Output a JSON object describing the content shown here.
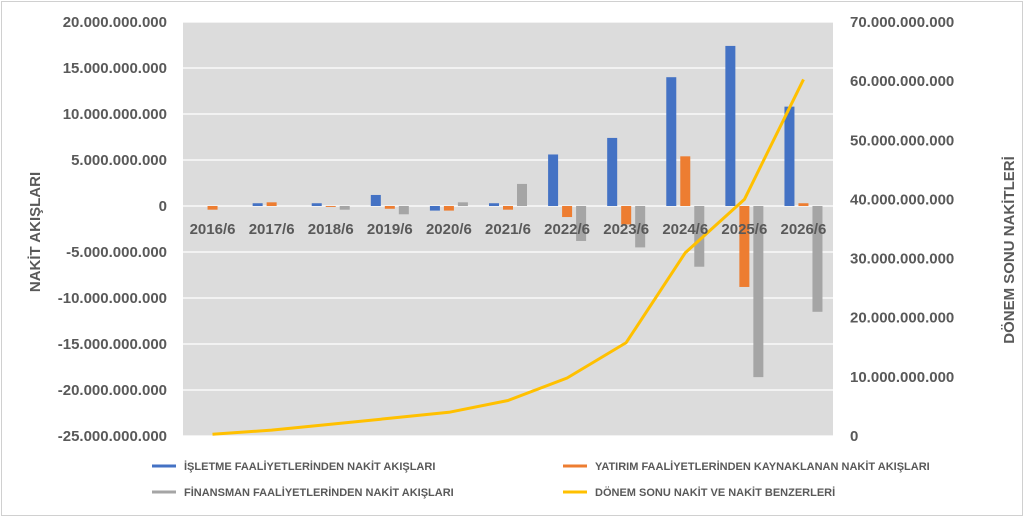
{
  "chart_data": {
    "type": "bar",
    "categories": [
      "2016/6",
      "2017/6",
      "2018/6",
      "2019/6",
      "2020/6",
      "2021/6",
      "2022/6",
      "2023/6",
      "2024/6",
      "2025/6",
      "2026/6"
    ],
    "series": [
      {
        "name": "İŞLETME FAALİYETLERİNDEN NAKİT AKIŞLARI",
        "type": "bar",
        "axis": "left",
        "color": "#4472C4",
        "values": [
          0,
          300000000,
          300000000,
          1200000000,
          -500000000,
          300000000,
          5600000000,
          7400000000,
          14000000000,
          17400000000,
          10800000000
        ]
      },
      {
        "name": "YATIRIM FAALİYETLERİNDEN KAYNAKLANAN NAKİT AKIŞLARI",
        "type": "bar",
        "axis": "left",
        "color": "#ED7D31",
        "values": [
          -400000000,
          400000000,
          -100000000,
          -300000000,
          -500000000,
          -400000000,
          -1200000000,
          -2000000000,
          5400000000,
          -8800000000,
          300000000
        ]
      },
      {
        "name": "FİNANSMAN FAALİYETLERİNDEN NAKİT AKIŞLARI",
        "type": "bar",
        "axis": "left",
        "color": "#A5A5A5",
        "values": [
          0,
          0,
          -400000000,
          -900000000,
          400000000,
          2400000000,
          -3800000000,
          -4500000000,
          -6600000000,
          -18600000000,
          -11500000000
        ]
      },
      {
        "name": "DÖNEM SONU NAKİT VE NAKİT BENZERLERİ",
        "type": "line",
        "axis": "right",
        "color": "#FFC000",
        "values": [
          300000000,
          1000000000,
          2000000000,
          3000000000,
          4000000000,
          6000000000,
          9800000000,
          15800000000,
          31000000000,
          40000000000,
          60300000000
        ]
      }
    ],
    "ylabel": "NAKİT AKIŞLARI",
    "y2label": "DÖNEM SONU NAKİTLERİ",
    "ylim": [
      -25000000000,
      20000000000
    ],
    "y2lim": [
      0,
      70000000000
    ],
    "yticks": [
      "20.000.000.000",
      "15.000.000.000",
      "10.000.000.000",
      "5.000.000.000",
      "0",
      "-5.000.000.000",
      "-10.000.000.000",
      "-15.000.000.000",
      "-20.000.000.000",
      "-25.000.000.000"
    ],
    "y2ticks": [
      "70.000.000.000",
      "60.000.000.000",
      "50.000.000.000",
      "40.000.000.000",
      "30.000.000.000",
      "20.000.000.000",
      "10.000.000.000",
      "0"
    ],
    "grid": true,
    "legend": "bottom",
    "plot_background": "#DCDCDC"
  }
}
